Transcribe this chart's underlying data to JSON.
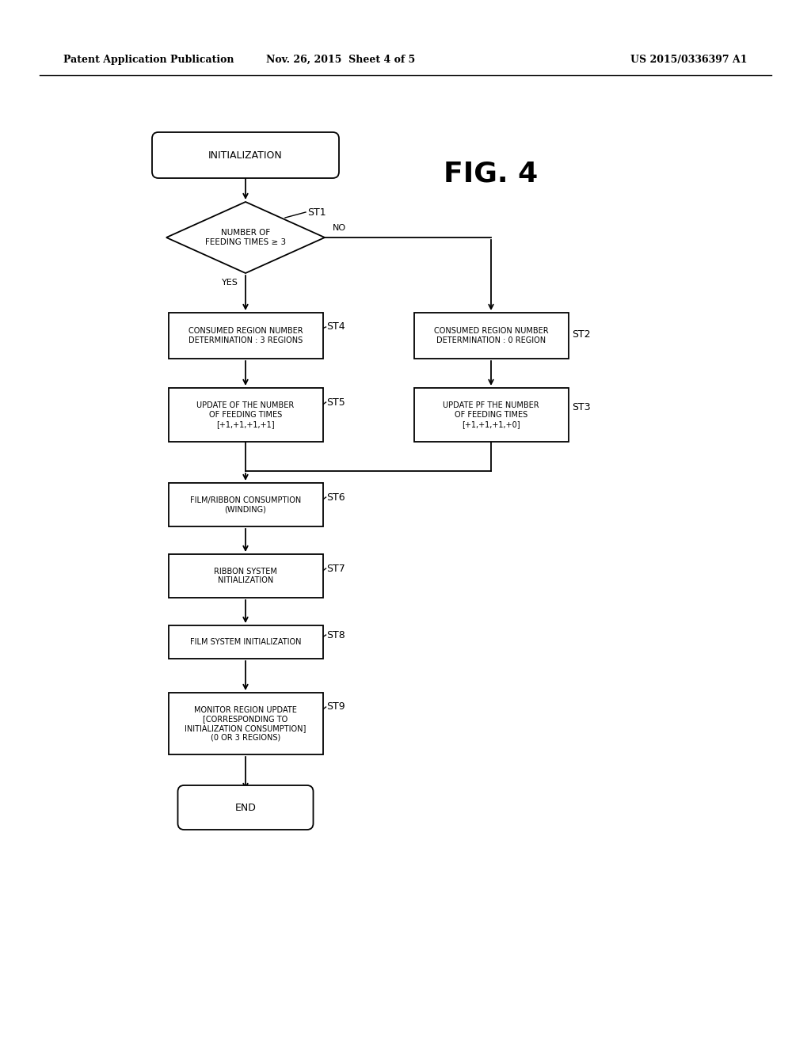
{
  "title": "FIG. 4",
  "header_left": "Patent Application Publication",
  "header_mid": "Nov. 26, 2015  Sheet 4 of 5",
  "header_right": "US 2015/0336397 A1",
  "bg_color": "#ffffff",
  "text_color": "#000000",
  "init_label": "INITIALIZATION",
  "diamond_label": "NUMBER OF\nFEEDING TIMES ≥ 3",
  "st4_label": "CONSUMED REGION NUMBER\nDETERMINATION : 3 REGIONS",
  "st2_label": "CONSUMED REGION NUMBER\nDETERMINATION : 0 REGION",
  "st5_label": "UPDATE OF THE NUMBER\nOF FEEDING TIMES\n[+1,+1,+1,+1]",
  "st3_label": "UPDATE PF THE NUMBER\nOF FEEDING TIMES\n[+1,+1,+1,+0]",
  "st6_label": "FILM/RIBBON CONSUMPTION\n(WINDING)",
  "st7_label": "RIBBON SYSTEM\nNITIALIZATION",
  "st8_label": "FILM SYSTEM INITIALIZATION",
  "st9_label": "MONITOR REGION UPDATE\n[CORRESPONDING TO\nINITIALIZATION CONSUMPTION]\n(0 OR 3 REGIONS)",
  "end_label": "END",
  "yes_label": "YES",
  "no_label": "NO",
  "st1_lbl": "ST1",
  "st2_lbl": "ST2",
  "st3_lbl": "ST3",
  "st4_lbl": "ST4",
  "st5_lbl": "ST5",
  "st6_lbl": "ST6",
  "st7_lbl": "ST7",
  "st8_lbl": "ST8",
  "st9_lbl": "ST9"
}
